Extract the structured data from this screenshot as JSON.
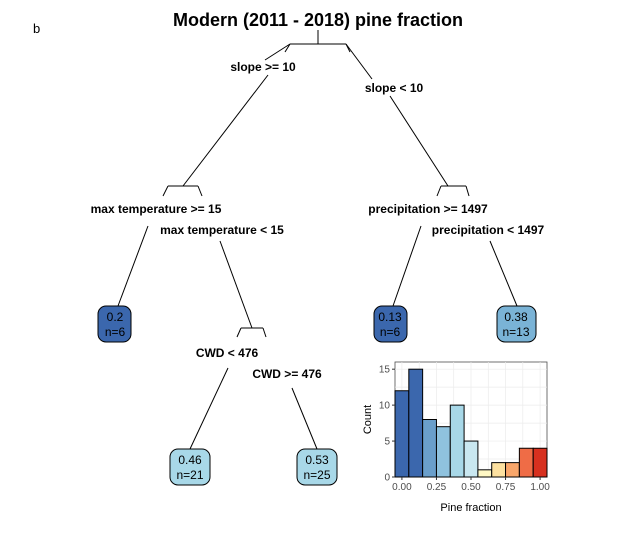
{
  "panel_label": "b",
  "title": "Modern (2011 - 2018) pine fraction",
  "tree": {
    "root_split": {
      "left": "slope >= 10",
      "right": "slope < 10"
    },
    "left_split": {
      "left": "max temperature >= 15",
      "right": "max temperature < 15"
    },
    "right_split": {
      "left": "precipitation >= 1497",
      "right": "precipitation < 1497"
    },
    "cwd_split": {
      "left": "CWD < 476",
      "right": "CWD >= 476"
    },
    "leaves": [
      {
        "value": "0.2",
        "n": "n=6",
        "color": "#3b67ad"
      },
      {
        "value": "0.46",
        "n": "n=21",
        "color": "#a8d8e8"
      },
      {
        "value": "0.53",
        "n": "n=25",
        "color": "#a8d8e8"
      },
      {
        "value": "0.13",
        "n": "n=6",
        "color": "#3b67ad"
      },
      {
        "value": "0.38",
        "n": "n=13",
        "color": "#7ab3d6"
      }
    ]
  },
  "chart_data": {
    "type": "bar",
    "xlabel": "Pine fraction",
    "ylabel": "Count",
    "xlim": [
      -0.05,
      1.05
    ],
    "ylim": [
      0,
      16
    ],
    "x_ticks": [
      "0.00",
      "0.25",
      "0.50",
      "0.75",
      "1.00"
    ],
    "y_ticks": [
      "0",
      "5",
      "10",
      "15"
    ],
    "bin_width": 0.1,
    "bins": [
      {
        "center": 0.0,
        "count": 12,
        "color": "#3b67ad"
      },
      {
        "center": 0.1,
        "count": 15,
        "color": "#3b67ad"
      },
      {
        "center": 0.2,
        "count": 8,
        "color": "#6a9fcb"
      },
      {
        "center": 0.3,
        "count": 7,
        "color": "#8fc2de"
      },
      {
        "center": 0.4,
        "count": 10,
        "color": "#a8d8e8"
      },
      {
        "center": 0.5,
        "count": 5,
        "color": "#c9e7f0"
      },
      {
        "center": 0.6,
        "count": 1,
        "color": "#fff8c4"
      },
      {
        "center": 0.7,
        "count": 2,
        "color": "#fde1a0"
      },
      {
        "center": 0.8,
        "count": 2,
        "color": "#f9a66a"
      },
      {
        "center": 0.9,
        "count": 4,
        "color": "#ef6c46"
      },
      {
        "center": 1.0,
        "count": 4,
        "color": "#d7301f"
      }
    ]
  }
}
